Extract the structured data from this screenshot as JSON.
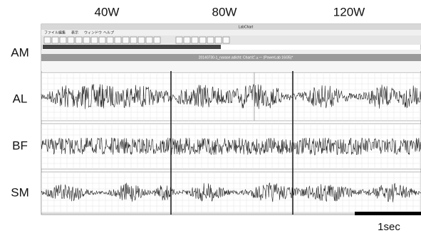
{
  "column_labels": [
    "40W",
    "80W",
    "120W"
  ],
  "row_labels": [
    "AM",
    "AL",
    "BF",
    "SM"
  ],
  "window": {
    "title": "LabChart",
    "menu": [
      "ファイル",
      "編集",
      "表示",
      "ウィンドウ",
      "ヘルプ"
    ],
    "file_title": "20140730-1_narase.adicht: Chartビュー (PowerLab 16/35)*"
  },
  "scale_bar": {
    "label": "1sec"
  }
}
